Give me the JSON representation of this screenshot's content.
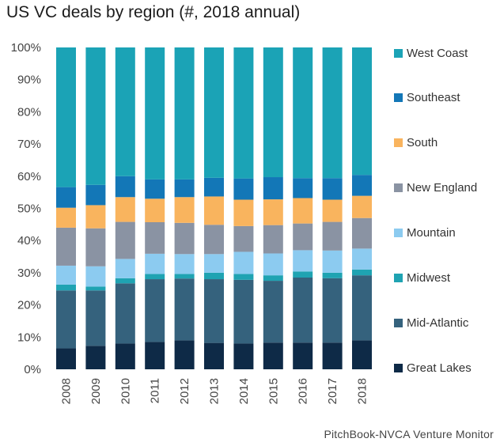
{
  "title": "US VC deals by region (#, 2018 annual)",
  "source": "PitchBook-NVCA Venture Monitor",
  "chart_data": {
    "type": "bar",
    "stacked": true,
    "categories": [
      "2008",
      "2009",
      "2010",
      "2011",
      "2012",
      "2013",
      "2014",
      "2015",
      "2016",
      "2017",
      "2018"
    ],
    "ylim": [
      0,
      100
    ],
    "yticks": [
      "0%",
      "10%",
      "20%",
      "30%",
      "40%",
      "50%",
      "60%",
      "70%",
      "80%",
      "90%",
      "100%"
    ],
    "grid": false,
    "legend_position": "right",
    "series": [
      {
        "name": "Great Lakes",
        "color": "#0e2a47",
        "values": [
          6.5,
          7.3,
          8,
          8.5,
          9,
          8.2,
          8,
          8.3,
          8.3,
          8.3,
          9
        ]
      },
      {
        "name": "Mid-Atlantic",
        "color": "#35627d",
        "values": [
          18,
          17.2,
          18.7,
          19.5,
          19.2,
          19.8,
          19.8,
          19.2,
          20.2,
          20,
          20.2
        ]
      },
      {
        "name": "Midwest",
        "color": "#1fa3b2",
        "values": [
          1.8,
          1.2,
          1.6,
          1.6,
          1.4,
          2,
          1.8,
          1.7,
          1.9,
          1.7,
          1.8
        ]
      },
      {
        "name": "Mountain",
        "color": "#8ccbf0",
        "values": [
          5.9,
          6.3,
          6,
          6.3,
          6.2,
          5.8,
          6.9,
          6.8,
          6.6,
          6.9,
          6.5
        ]
      },
      {
        "name": "New England",
        "color": "#8a93a3",
        "values": [
          11.8,
          11.8,
          11.5,
          9.8,
          9.7,
          9.1,
          8,
          8.8,
          8.3,
          8.9,
          9.5
        ]
      },
      {
        "name": "South",
        "color": "#f9b45e",
        "values": [
          6.2,
          7.2,
          7.7,
          7.3,
          8,
          8.8,
          8.2,
          8,
          7.9,
          6.9,
          6.9
        ]
      },
      {
        "name": "Southeast",
        "color": "#1377b7",
        "values": [
          6.4,
          6.3,
          6.5,
          6,
          5.5,
          5.8,
          6.6,
          6.9,
          6.2,
          6.7,
          6.5
        ]
      },
      {
        "name": "West Coast",
        "color": "#1ba3b6",
        "values": [
          43.4,
          42.7,
          40,
          41,
          41,
          40.5,
          40.7,
          40.3,
          40.6,
          40.6,
          39.6
        ]
      }
    ]
  }
}
